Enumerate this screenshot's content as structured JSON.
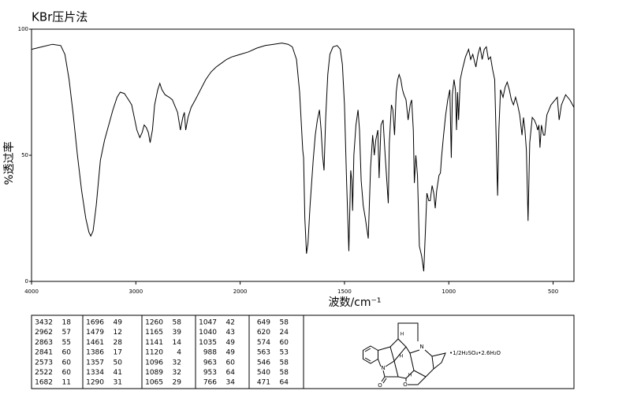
{
  "chart_data": {
    "type": "line",
    "title": "KBr压片法",
    "x_label": "波数/cm⁻¹",
    "y_label": "%透过率",
    "xlim": [
      4000,
      400
    ],
    "xticks": [
      4000,
      3000,
      2000,
      1500,
      1000,
      500
    ],
    "ylim": [
      0,
      100
    ],
    "yticks": [
      0,
      50,
      100
    ],
    "color": "#000000",
    "x": [
      4000,
      3900,
      3800,
      3720,
      3680,
      3640,
      3600,
      3560,
      3520,
      3480,
      3450,
      3432,
      3410,
      3380,
      3340,
      3300,
      3260,
      3220,
      3180,
      3150,
      3110,
      3070,
      3040,
      3020,
      2990,
      2962,
      2940,
      2920,
      2900,
      2880,
      2863,
      2850,
      2841,
      2820,
      2790,
      2770,
      2750,
      2720,
      2680,
      2650,
      2620,
      2600,
      2573,
      2550,
      2535,
      2522,
      2500,
      2470,
      2430,
      2380,
      2330,
      2280,
      2230,
      2180,
      2130,
      2080,
      2040,
      2000,
      1960,
      1920,
      1880,
      1840,
      1800,
      1770,
      1750,
      1730,
      1715,
      1700,
      1696,
      1690,
      1682,
      1675,
      1665,
      1650,
      1640,
      1630,
      1620,
      1612,
      1605,
      1598,
      1590,
      1580,
      1570,
      1555,
      1535,
      1520,
      1510,
      1500,
      1490,
      1479,
      1470,
      1465,
      1461,
      1455,
      1445,
      1435,
      1428,
      1420,
      1410,
      1400,
      1386,
      1375,
      1365,
      1357,
      1350,
      1340,
      1334,
      1325,
      1315,
      1305,
      1290,
      1285,
      1275,
      1268,
      1260,
      1252,
      1245,
      1238,
      1230,
      1222,
      1215,
      1205,
      1195,
      1185,
      1178,
      1170,
      1165,
      1158,
      1150,
      1141,
      1130,
      1120,
      1112,
      1105,
      1096,
      1089,
      1080,
      1072,
      1065,
      1058,
      1047,
      1040,
      1035,
      1025,
      1015,
      1005,
      995,
      988,
      983,
      975,
      968,
      963,
      958,
      953,
      945,
      935,
      920,
      905,
      895,
      885,
      870,
      860,
      850,
      840,
      830,
      820,
      810,
      800,
      790,
      780,
      766,
      760,
      752,
      740,
      730,
      720,
      710,
      700,
      690,
      680,
      670,
      660,
      649,
      642,
      635,
      628,
      620,
      612,
      600,
      590,
      580,
      574,
      568,
      563,
      556,
      546,
      540,
      530,
      520,
      510,
      500,
      490,
      480,
      471,
      460,
      440,
      420,
      400
    ],
    "values": [
      92,
      93,
      94,
      93.5,
      90,
      80,
      66,
      50,
      36,
      25,
      19.5,
      18,
      20,
      30,
      48,
      56,
      62,
      68,
      73,
      75,
      74.5,
      72,
      70,
      66,
      60,
      57,
      59,
      62,
      61,
      59,
      55,
      58,
      60,
      70,
      76,
      78.5,
      76,
      74,
      73,
      72,
      69,
      67,
      60,
      65,
      67,
      60,
      65,
      69,
      72,
      76,
      80,
      83,
      85,
      86.5,
      88,
      89,
      89.5,
      90,
      91,
      92.5,
      93.5,
      94,
      94.5,
      94,
      93,
      88,
      75,
      52,
      49,
      25,
      11,
      15,
      30,
      48,
      58,
      64,
      68,
      60,
      50,
      44,
      65,
      82,
      90,
      93,
      93.5,
      92,
      86,
      70,
      40,
      12,
      44,
      40,
      28,
      50,
      62,
      68,
      60,
      40,
      30,
      25,
      17,
      45,
      58,
      50,
      56,
      60,
      41,
      62,
      64,
      50,
      31,
      55,
      70,
      68,
      58,
      75,
      80,
      82,
      80,
      76,
      74,
      72,
      64,
      70,
      72,
      60,
      39,
      50,
      42,
      14,
      10,
      4,
      20,
      35,
      32,
      32,
      38,
      35,
      29,
      36,
      42,
      43,
      49,
      58,
      66,
      72,
      76,
      49,
      74,
      80,
      76,
      60,
      75,
      64,
      80,
      84,
      89,
      92,
      88,
      90,
      85,
      90,
      93,
      88,
      92,
      93,
      88,
      89,
      84,
      80,
      34,
      60,
      76,
      73,
      77,
      79,
      76,
      72,
      70,
      73,
      70,
      66,
      58,
      65,
      60,
      52,
      24,
      55,
      65,
      64,
      62,
      60,
      62,
      53,
      62,
      58,
      58,
      66,
      68,
      70,
      71,
      72,
      73,
      64,
      70,
      74,
      72,
      69
    ],
    "peak_table": [
      [
        [
          3432,
          18
        ],
        [
          2962,
          57
        ],
        [
          2863,
          55
        ],
        [
          2841,
          60
        ],
        [
          2573,
          60
        ],
        [
          2522,
          60
        ],
        [
          1682,
          11
        ]
      ],
      [
        [
          1696,
          49
        ],
        [
          1479,
          12
        ],
        [
          1461,
          28
        ],
        [
          1386,
          17
        ],
        [
          1357,
          50
        ],
        [
          1334,
          41
        ],
        [
          1290,
          31
        ]
      ],
      [
        [
          1260,
          58
        ],
        [
          1165,
          39
        ],
        [
          1141,
          14
        ],
        [
          1120,
          4
        ],
        [
          1096,
          32
        ],
        [
          1089,
          32
        ],
        [
          1065,
          29
        ]
      ],
      [
        [
          1047,
          42
        ],
        [
          1040,
          43
        ],
        [
          1035,
          49
        ],
        [
          988,
          49
        ],
        [
          963,
          60
        ],
        [
          953,
          64
        ],
        [
          766,
          34
        ]
      ],
      [
        [
          649,
          58
        ],
        [
          620,
          24
        ],
        [
          574,
          60
        ],
        [
          563,
          53
        ],
        [
          546,
          58
        ],
        [
          540,
          58
        ],
        [
          471,
          64
        ]
      ]
    ]
  },
  "structure": {
    "atoms": [
      "N",
      "N",
      "O",
      "O",
      "H",
      "H",
      "H"
    ],
    "salt_label": "•1/2H₂SO₄•2.6H₂O"
  }
}
